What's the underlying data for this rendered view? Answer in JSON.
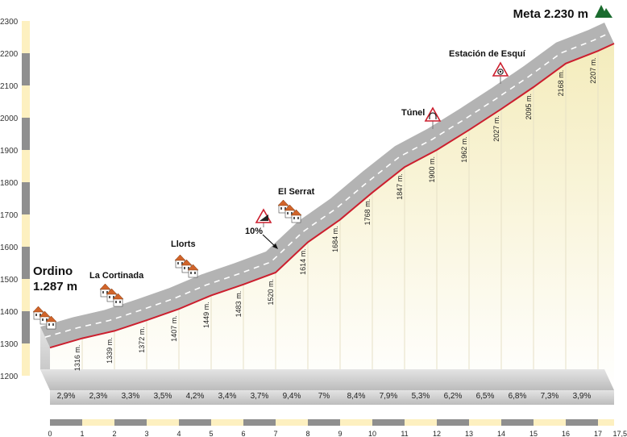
{
  "chart_data": {
    "type": "area",
    "title": "",
    "xlabel": "",
    "ylabel": "",
    "xlim": [
      0,
      17.5
    ],
    "ylim": [
      1200,
      2300
    ],
    "y_ticks": [
      "1200",
      "1300",
      "1400",
      "1500",
      "1600",
      "1700",
      "1800",
      "1900",
      "2000",
      "2100",
      "2200",
      "2300"
    ],
    "x_ticks": [
      "0",
      "1",
      "2",
      "3",
      "4",
      "5",
      "6",
      "7",
      "8",
      "9",
      "10",
      "11",
      "12",
      "13",
      "14",
      "15",
      "16",
      "17",
      "17,5"
    ],
    "profile": {
      "x": [
        0,
        1,
        2,
        3,
        4,
        5,
        6,
        7,
        8,
        9,
        10,
        11,
        12,
        13,
        14,
        15,
        16,
        17,
        17.5
      ],
      "y": [
        1287,
        1316,
        1339,
        1372,
        1407,
        1449,
        1483,
        1520,
        1614,
        1684,
        1768,
        1847,
        1900,
        1962,
        2027,
        2095,
        2168,
        2207,
        2230
      ]
    },
    "elevation_labels": [
      {
        "x": 1,
        "label": "1316 m."
      },
      {
        "x": 2,
        "label": "1339 m."
      },
      {
        "x": 3,
        "label": "1372 m."
      },
      {
        "x": 4,
        "label": "1407 m."
      },
      {
        "x": 5,
        "label": "1449 m."
      },
      {
        "x": 6,
        "label": "1483 m."
      },
      {
        "x": 7,
        "label": "1520 m."
      },
      {
        "x": 8,
        "label": "1614 m."
      },
      {
        "x": 9,
        "label": "1684 m."
      },
      {
        "x": 10,
        "label": "1768 m."
      },
      {
        "x": 11,
        "label": "1847 m."
      },
      {
        "x": 12,
        "label": "1900 m."
      },
      {
        "x": 13,
        "label": "1962 m."
      },
      {
        "x": 14,
        "label": "2027 m."
      },
      {
        "x": 15,
        "label": "2095 m."
      },
      {
        "x": 16,
        "label": "2168 m."
      },
      {
        "x": 17,
        "label": "2207 m."
      }
    ],
    "gradients": [
      "2,9%",
      "2,3%",
      "3,3%",
      "3,5%",
      "4,2%",
      "3,4%",
      "3,7%",
      "9,4%",
      "7%",
      "8,4%",
      "7,9%",
      "5,3%",
      "6,2%",
      "6,5%",
      "6,8%",
      "7,3%",
      "3,9%"
    ],
    "places": [
      {
        "name": "Ordino",
        "sub": "1.287 m",
        "x": 0,
        "icon": "village-icon"
      },
      {
        "name": "La Cortinada",
        "x": 2,
        "icon": "village-icon"
      },
      {
        "name": "Llorts",
        "x": 4.3,
        "icon": "village-icon"
      },
      {
        "name": "El Serrat",
        "x": 7.8,
        "icon": "village-icon"
      },
      {
        "name": "Túnel",
        "x": 11.95,
        "icon": "tunnel-sign-icon"
      },
      {
        "name": "Estación de Esquí",
        "x": 13.9,
        "icon": "ski-sign-icon"
      },
      {
        "name": "Meta 2.230 m",
        "x": 17.5,
        "icon": "mountain-icon"
      }
    ],
    "annotations": [
      {
        "text": "10%",
        "x": 7,
        "icon": "steep-grade-sign-icon"
      }
    ],
    "colors": {
      "road": "#b3b3b3",
      "road_dash": "#ffffff",
      "profile_line": "#cc1f2e",
      "fill_top": "#f6efc0",
      "fill_bottom": "#ffffff",
      "axis_band_light": "#fdf0c0",
      "axis_band_dark": "#8f8f8f",
      "mountain": "#1a6b2e"
    }
  }
}
